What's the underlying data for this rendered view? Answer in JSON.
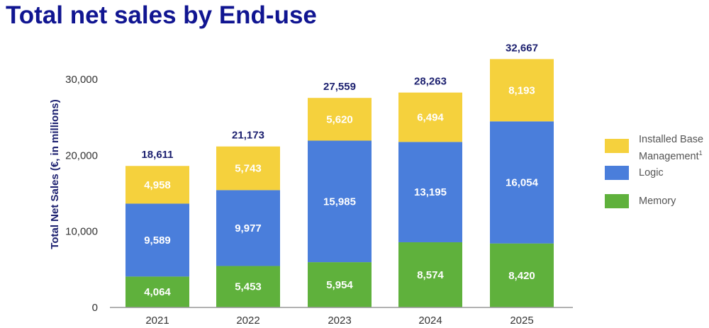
{
  "page": {
    "title": "Total net sales by End-use"
  },
  "colors": {
    "memory": "#5fb13c",
    "logic": "#4a7edb",
    "ibm": "#f5d13d",
    "title": "#101591",
    "total": "#1d2170",
    "axis": "#999999"
  },
  "chart_data": {
    "type": "stacked-bar",
    "title": "Total net sales by End-use",
    "xlabel": "",
    "ylabel": "Total Net Sales (€, in millions)",
    "ylim": [
      0,
      30000
    ],
    "yticks": [
      "0",
      "10,000",
      "20,000",
      "30,000"
    ],
    "categories": [
      "2021",
      "2022",
      "2023",
      "2024",
      "2025"
    ],
    "series": [
      {
        "name": "Memory",
        "color": "#5fb13c",
        "values": [
          4064,
          5453,
          5954,
          8574,
          8420
        ],
        "labels": [
          "4,064",
          "5,453",
          "5,954",
          "8,574",
          "8,420"
        ]
      },
      {
        "name": "Logic",
        "color": "#4a7edb",
        "values": [
          9589,
          9977,
          15985,
          13195,
          16054
        ],
        "labels": [
          "9,589",
          "9,977",
          "15,985",
          "13,195",
          "16,054"
        ]
      },
      {
        "name": "Installed Base Management",
        "color": "#f5d13d",
        "values": [
          4958,
          5743,
          5620,
          6494,
          8193
        ],
        "labels": [
          "4,958",
          "5,743",
          "5,620",
          "6,494",
          "8,193"
        ]
      }
    ],
    "totals": [
      18611,
      21173,
      27559,
      28263,
      32667
    ],
    "total_labels": [
      "18,611",
      "21,173",
      "27,559",
      "28,263",
      "32,667"
    ],
    "legend": {
      "position": "right",
      "items": [
        {
          "line1": "Installed Base",
          "line2": "Management",
          "sup": "1",
          "color": "#f5d13d"
        },
        {
          "line1": "Logic",
          "color": "#4a7edb"
        },
        {
          "line1": "Memory",
          "color": "#5fb13c"
        }
      ]
    }
  }
}
